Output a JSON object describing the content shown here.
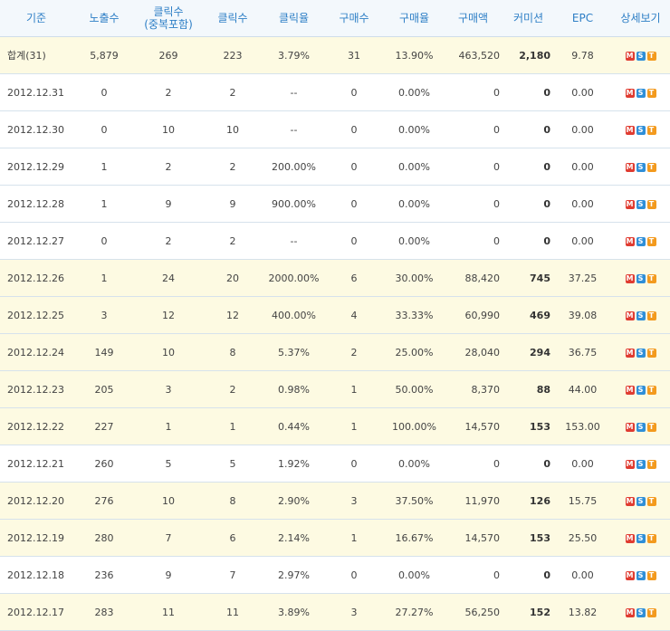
{
  "table": {
    "columns": [
      "기준",
      "노출수",
      "클릭수\n(중복포함)",
      "클릭수",
      "클릭율",
      "구매수",
      "구매율",
      "구매액",
      "커미션",
      "EPC",
      "상세보기"
    ],
    "detail_icons": [
      "M",
      "S",
      "T"
    ],
    "rows": [
      [
        "합계(31)",
        "5,879",
        "269",
        "223",
        "3.79%",
        "31",
        "13.90%",
        "463,520",
        "2,180",
        "9.78"
      ],
      [
        "2012.12.31",
        "0",
        "2",
        "2",
        "--",
        "0",
        "0.00%",
        "0",
        "0",
        "0.00"
      ],
      [
        "2012.12.30",
        "0",
        "10",
        "10",
        "--",
        "0",
        "0.00%",
        "0",
        "0",
        "0.00"
      ],
      [
        "2012.12.29",
        "1",
        "2",
        "2",
        "200.00%",
        "0",
        "0.00%",
        "0",
        "0",
        "0.00"
      ],
      [
        "2012.12.28",
        "1",
        "9",
        "9",
        "900.00%",
        "0",
        "0.00%",
        "0",
        "0",
        "0.00"
      ],
      [
        "2012.12.27",
        "0",
        "2",
        "2",
        "--",
        "0",
        "0.00%",
        "0",
        "0",
        "0.00"
      ],
      [
        "2012.12.26",
        "1",
        "24",
        "20",
        "2000.00%",
        "6",
        "30.00%",
        "88,420",
        "745",
        "37.25"
      ],
      [
        "2012.12.25",
        "3",
        "12",
        "12",
        "400.00%",
        "4",
        "33.33%",
        "60,990",
        "469",
        "39.08"
      ],
      [
        "2012.12.24",
        "149",
        "10",
        "8",
        "5.37%",
        "2",
        "25.00%",
        "28,040",
        "294",
        "36.75"
      ],
      [
        "2012.12.23",
        "205",
        "3",
        "2",
        "0.98%",
        "1",
        "50.00%",
        "8,370",
        "88",
        "44.00"
      ],
      [
        "2012.12.22",
        "227",
        "1",
        "1",
        "0.44%",
        "1",
        "100.00%",
        "14,570",
        "153",
        "153.00"
      ],
      [
        "2012.12.21",
        "260",
        "5",
        "5",
        "1.92%",
        "0",
        "0.00%",
        "0",
        "0",
        "0.00"
      ],
      [
        "2012.12.20",
        "276",
        "10",
        "8",
        "2.90%",
        "3",
        "37.50%",
        "11,970",
        "126",
        "15.75"
      ],
      [
        "2012.12.19",
        "280",
        "7",
        "6",
        "2.14%",
        "1",
        "16.67%",
        "14,570",
        "153",
        "25.50"
      ],
      [
        "2012.12.18",
        "236",
        "9",
        "7",
        "2.97%",
        "0",
        "0.00%",
        "0",
        "0",
        "0.00"
      ],
      [
        "2012.12.17",
        "283",
        "11",
        "11",
        "3.89%",
        "3",
        "27.27%",
        "56,250",
        "152",
        "13.82"
      ]
    ]
  }
}
